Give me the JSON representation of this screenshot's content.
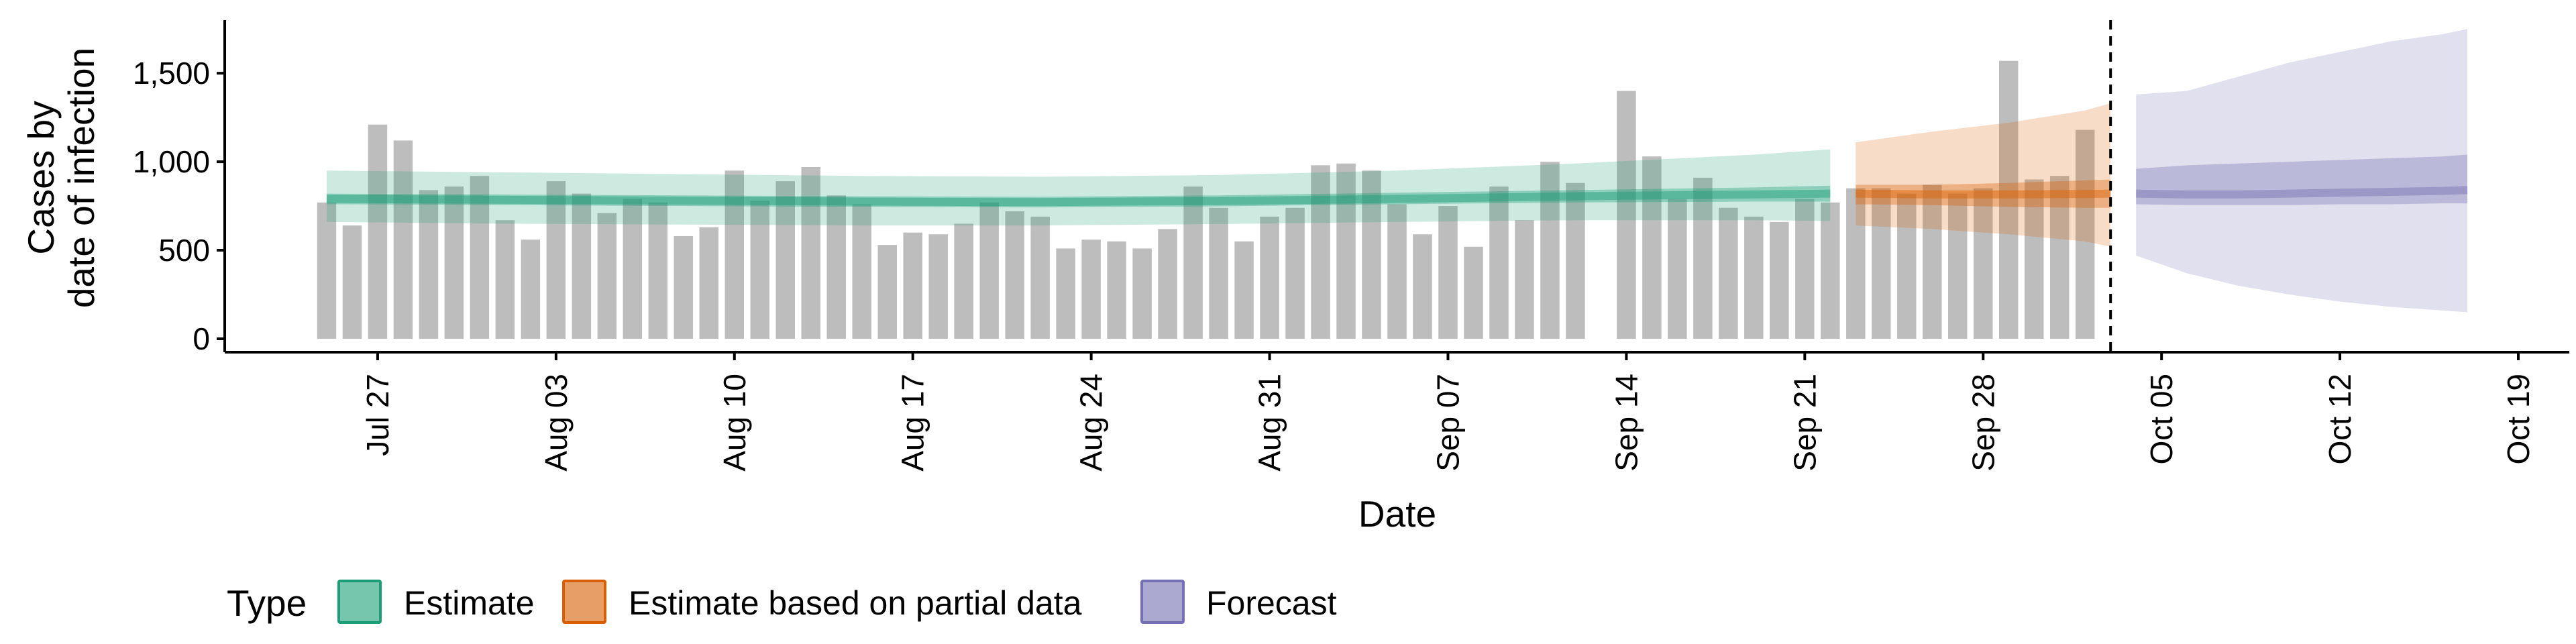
{
  "chart_data": {
    "type": "bar",
    "xlabel": "Date",
    "ylabel_lines": [
      "Cases by",
      "date of infection"
    ],
    "ylim": [
      0,
      1800
    ],
    "yticks": [
      0,
      500,
      1000,
      1500
    ],
    "ytick_labels": [
      "0",
      "500",
      "1,000",
      "1,500"
    ],
    "xlim": [
      "2020-07-21",
      "2020-10-21"
    ],
    "xticks": [
      "2020-07-27",
      "2020-08-03",
      "2020-08-10",
      "2020-08-17",
      "2020-08-24",
      "2020-08-31",
      "2020-09-07",
      "2020-09-14",
      "2020-09-21",
      "2020-09-28",
      "2020-10-05",
      "2020-10-12",
      "2020-10-19"
    ],
    "xtick_labels": [
      "Jul 27",
      "Aug 03",
      "Aug 10",
      "Aug 17",
      "Aug 24",
      "Aug 31",
      "Sep 07",
      "Sep 14",
      "Sep 21",
      "Sep 28",
      "Oct 05",
      "Oct 12",
      "Oct 19"
    ],
    "reported_cases": {
      "start_date": "2020-07-25",
      "values": [
        770,
        640,
        1210,
        1120,
        840,
        860,
        920,
        670,
        560,
        890,
        820,
        710,
        790,
        770,
        580,
        630,
        950,
        780,
        890,
        970,
        810,
        760,
        530,
        600,
        590,
        650,
        770,
        720,
        690,
        510,
        560,
        550,
        510,
        620,
        860,
        740,
        550,
        690,
        740,
        980,
        990,
        950,
        760,
        590,
        750,
        520,
        860,
        670,
        1000,
        880,
        null,
        1400,
        1030,
        790,
        910,
        740,
        690,
        660,
        790,
        770,
        850,
        850,
        820,
        870,
        820,
        850,
        1570,
        900,
        920,
        1180
      ]
    },
    "vertical_line_date": "2020-10-03",
    "series": [
      {
        "name": "Estimate",
        "color": "#1b9e77",
        "dates": [
          "2020-07-25",
          "2020-08-01",
          "2020-08-08",
          "2020-08-15",
          "2020-08-22",
          "2020-08-29",
          "2020-09-05",
          "2020-09-12",
          "2020-09-19",
          "2020-09-22"
        ],
        "median": [
          790,
          785,
          780,
          775,
          772,
          778,
          790,
          805,
          815,
          820
        ],
        "inner_lower": [
          760,
          755,
          750,
          745,
          742,
          748,
          760,
          770,
          775,
          775
        ],
        "inner_upper": [
          820,
          815,
          810,
          805,
          802,
          810,
          825,
          840,
          855,
          865
        ],
        "outer_lower": [
          660,
          650,
          645,
          640,
          640,
          648,
          660,
          670,
          670,
          665
        ],
        "outer_upper": [
          950,
          940,
          930,
          920,
          915,
          925,
          950,
          990,
          1040,
          1070
        ]
      },
      {
        "name": "Estimate based on partial data",
        "color": "#d95f02",
        "dates": [
          "2020-09-23",
          "2020-09-26",
          "2020-09-29",
          "2020-10-02",
          "2020-10-03"
        ],
        "median": [
          820,
          815,
          815,
          818,
          820
        ],
        "inner_lower": [
          760,
          755,
          745,
          740,
          740
        ],
        "inner_upper": [
          870,
          870,
          880,
          895,
          900
        ],
        "outer_lower": [
          640,
          620,
          590,
          550,
          520
        ],
        "outer_upper": [
          1110,
          1170,
          1220,
          1290,
          1330
        ]
      },
      {
        "name": "Forecast",
        "color": "#7570b3",
        "dates": [
          "2020-10-04",
          "2020-10-06",
          "2020-10-08",
          "2020-10-10",
          "2020-10-12",
          "2020-10-14",
          "2020-10-16",
          "2020-10-17"
        ],
        "median": [
          820,
          815,
          815,
          820,
          825,
          830,
          835,
          840
        ],
        "inner_lower": [
          760,
          755,
          755,
          755,
          760,
          760,
          765,
          765
        ],
        "inner_upper": [
          960,
          980,
          990,
          1000,
          1010,
          1020,
          1030,
          1040
        ],
        "outer_lower": [
          470,
          370,
          300,
          250,
          210,
          180,
          160,
          150
        ],
        "outer_upper": [
          1380,
          1400,
          1480,
          1560,
          1620,
          1680,
          1720,
          1750
        ]
      }
    ],
    "legend": {
      "title": "Type",
      "position": "bottom",
      "items": [
        {
          "label": "Estimate",
          "color": "#1b9e77"
        },
        {
          "label": "Estimate based on partial data",
          "color": "#d95f02"
        },
        {
          "label": "Forecast",
          "color": "#7570b3"
        }
      ]
    },
    "grid": false
  }
}
